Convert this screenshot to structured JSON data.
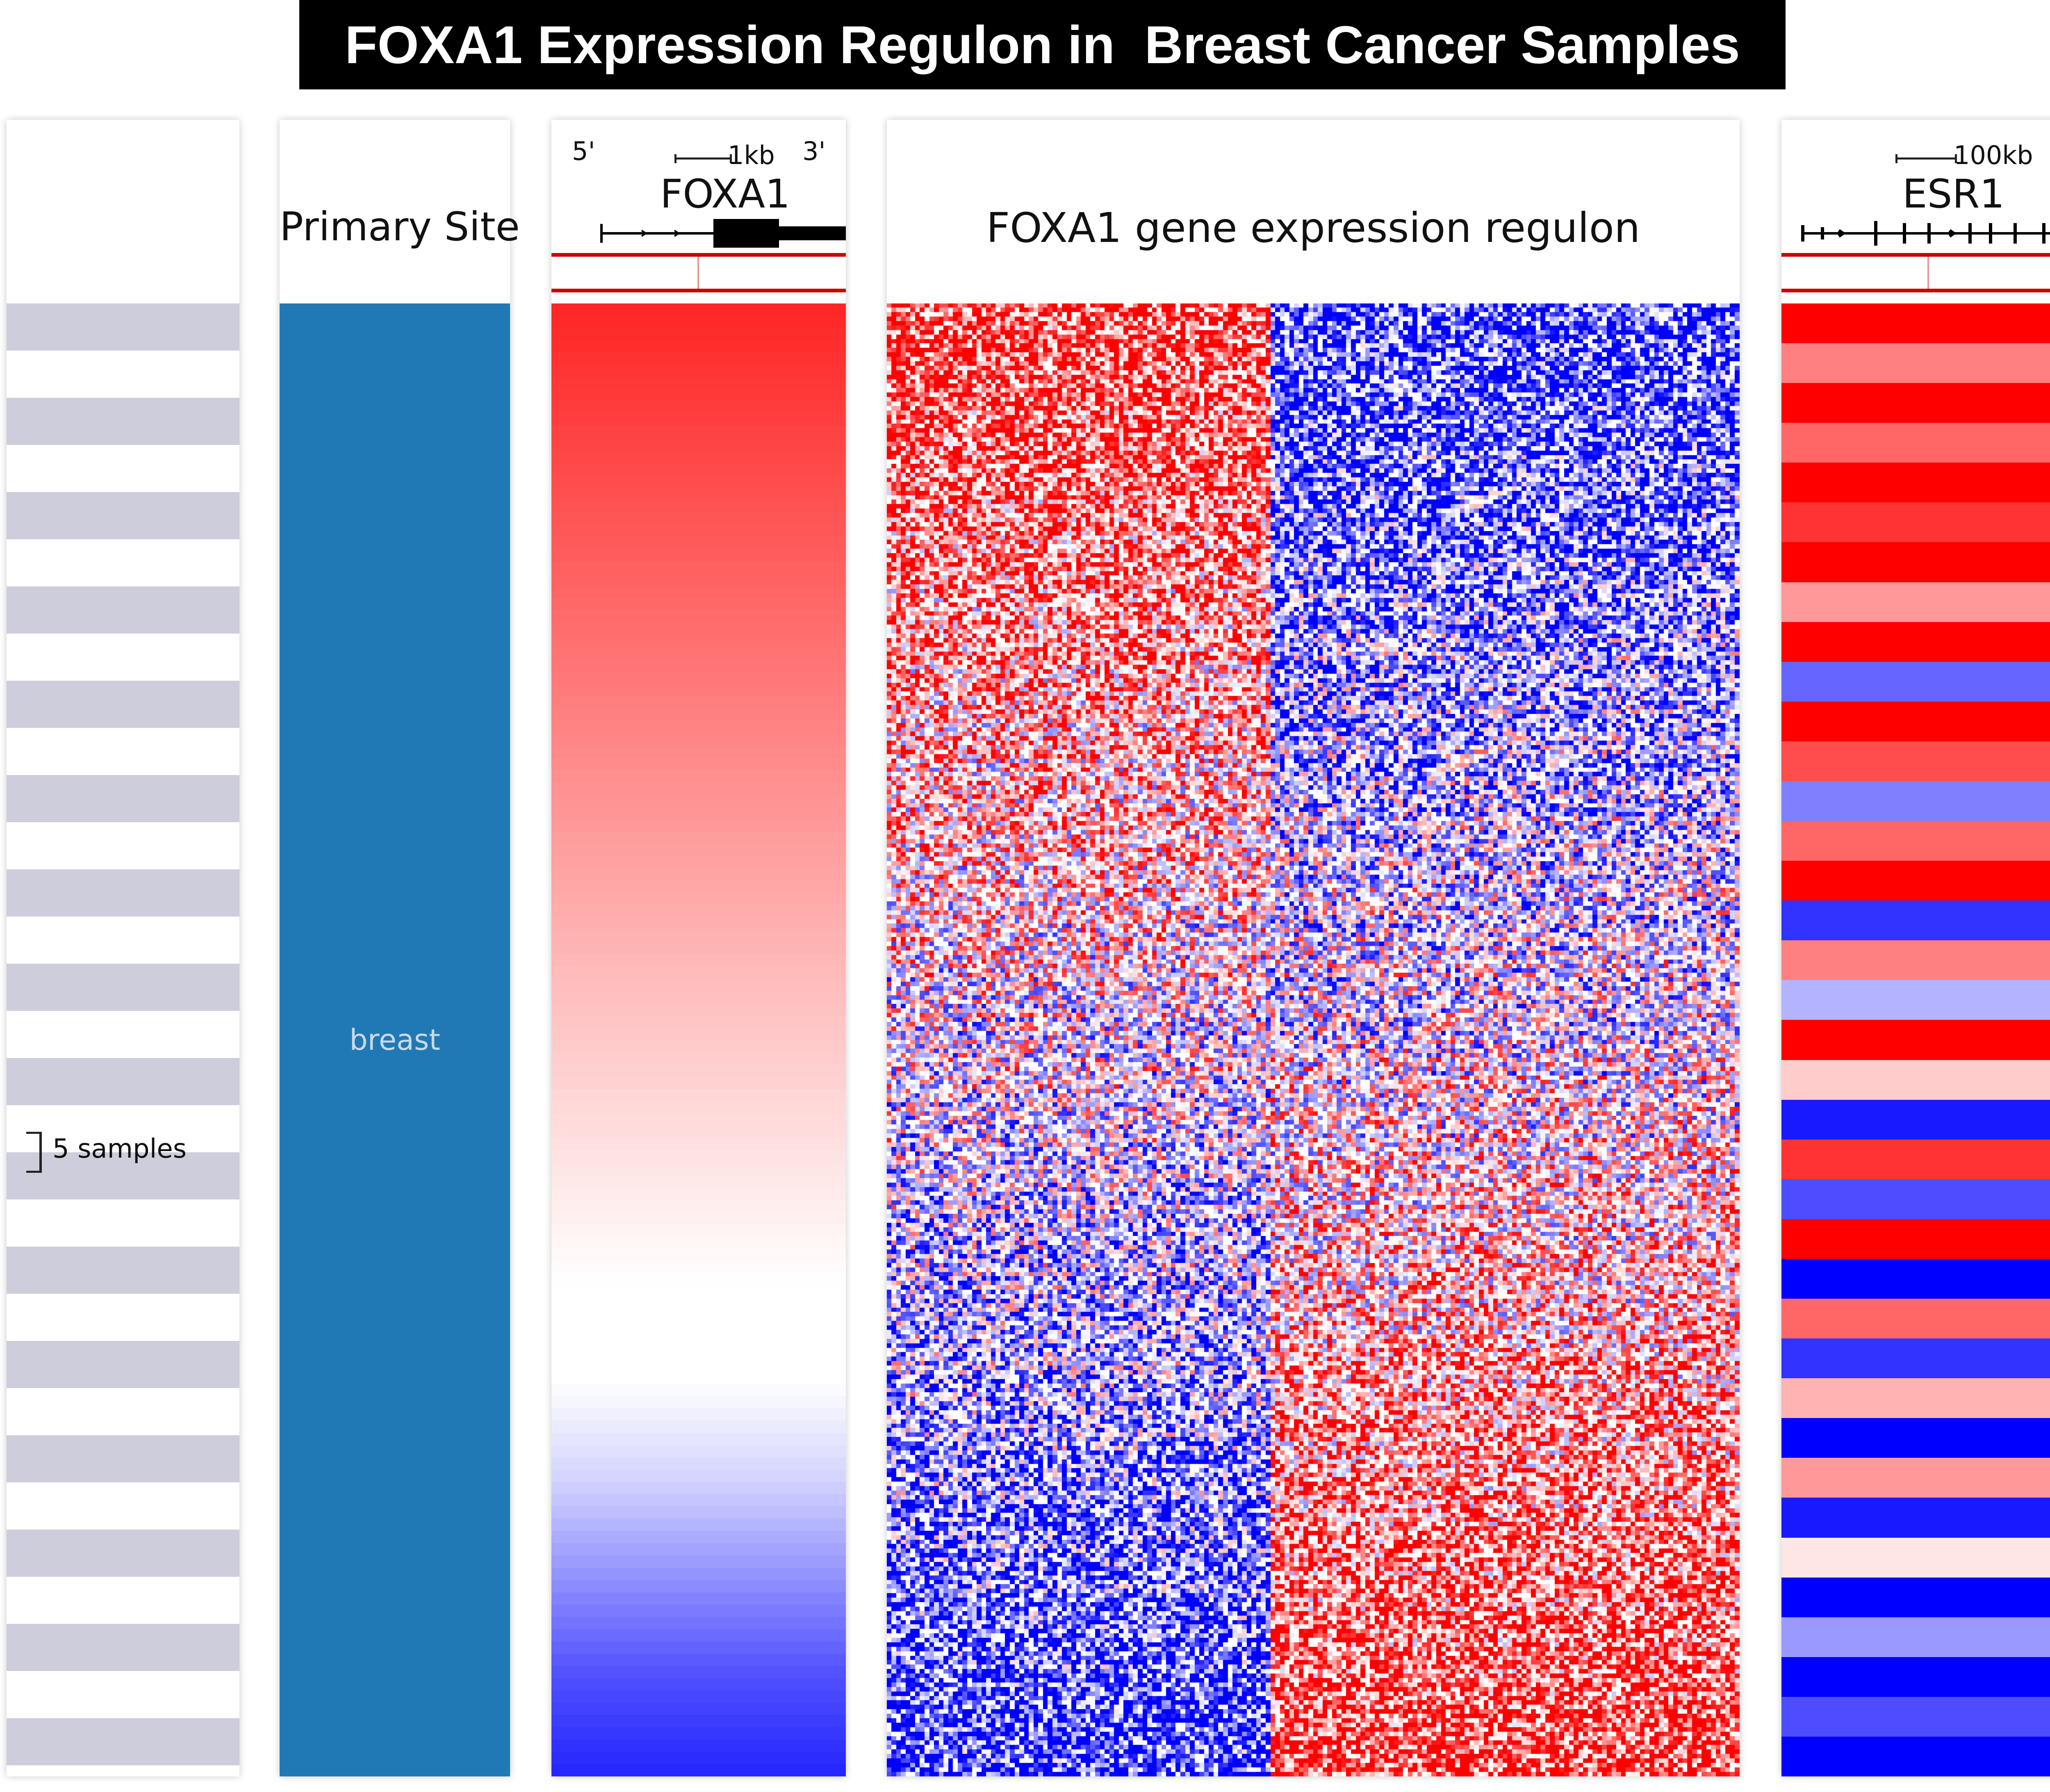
{
  "title": "FOXA1 Expression Regulon in  Breast Cancer Samples",
  "panels": {
    "samples": {
      "scale_label": "5 samples"
    },
    "primary_site": {
      "header": "Primary Site",
      "value": "breast"
    },
    "foxa1": {
      "gene": "FOXA1",
      "five_prime": "5'",
      "three_prime": "3'",
      "scale": "1kb"
    },
    "regulon": {
      "header": "FOXA1 gene expression regulon"
    },
    "esr1": {
      "gene": "ESR1",
      "scale": "100kb"
    }
  },
  "colors": {
    "high": "#ff0000",
    "mid": "#ffffff",
    "low": "#0000ff",
    "site": "#2079b4",
    "sample_stripe": "#cdcddb",
    "track_line": "#cc0000"
  },
  "chart_data": {
    "type": "heatmap",
    "title": "FOXA1 Expression Regulon in  Breast Cancer Samples",
    "row_order": "samples sorted by FOXA1 expression (high to low)",
    "tracks": [
      {
        "name": "Primary Site",
        "type": "categorical",
        "categories": [
          "breast"
        ]
      },
      {
        "name": "FOXA1",
        "type": "continuous",
        "profile_top_to_bottom": [
          1.0,
          0.9,
          0.8,
          0.7,
          0.6,
          0.5,
          0.4,
          0.3,
          0.2,
          0.1,
          0.0,
          0.0,
          -0.2,
          -0.5,
          -0.8,
          -1.0
        ]
      },
      {
        "name": "FOXA1 gene expression regulon",
        "type": "matrix",
        "pattern": "left gene block positively correlated with FOXA1, right gene block negatively correlated"
      },
      {
        "name": "ESR1",
        "type": "continuous",
        "segment_values_top_to_bottom": [
          1,
          0.5,
          1,
          0.6,
          1,
          0.8,
          1,
          0.4,
          1,
          -0.6,
          1,
          0.7,
          -0.5,
          0.6,
          1,
          -0.8,
          0.5,
          -0.3,
          1,
          0.2,
          -0.9,
          0.8,
          -0.7,
          1,
          -1,
          0.6,
          -0.8,
          0.3,
          -1,
          0.4,
          -0.9,
          0.1,
          -1,
          -0.4,
          -1,
          -0.7,
          -1
        ]
      }
    ]
  }
}
